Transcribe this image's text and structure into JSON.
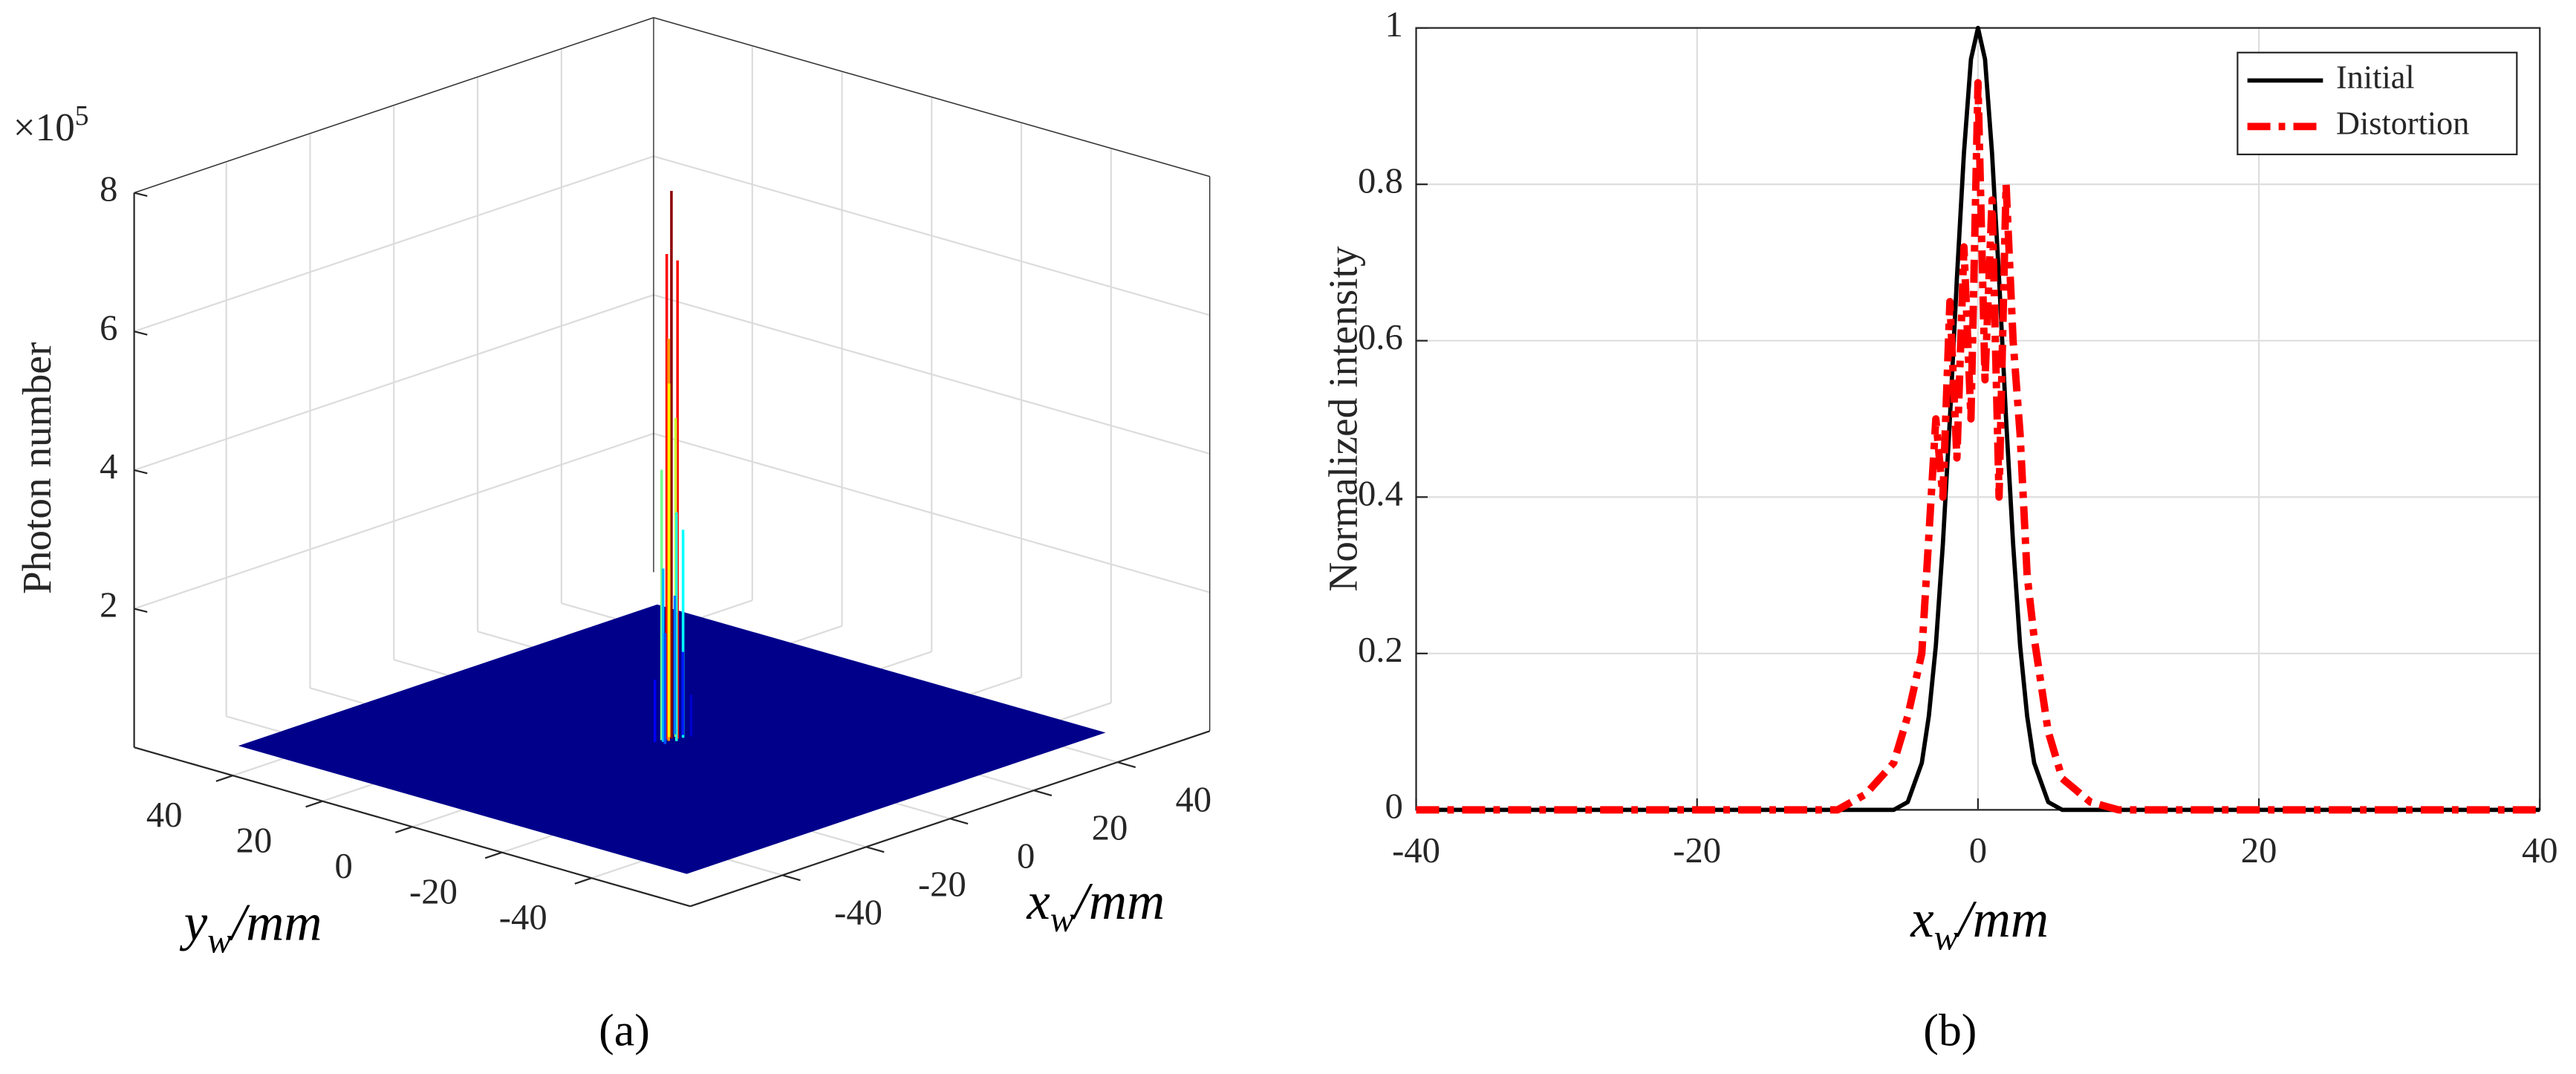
{
  "chart_data": [
    {
      "type": "surface3d",
      "caption": "(a)",
      "zlabel": "Photon number",
      "z_multiplier": {
        "base": "×10",
        "exponent": "5"
      },
      "xlabel": {
        "text": "x",
        "subscript": "w",
        "unit": "/mm"
      },
      "ylabel": {
        "text": "y",
        "subscript": "w",
        "unit": "/mm"
      },
      "xlim": [
        -62,
        62
      ],
      "ylim": [
        -62,
        62
      ],
      "zlim": [
        0,
        8
      ],
      "xticks": [
        -40,
        -20,
        0,
        20,
        40
      ],
      "yticks": [
        -40,
        -20,
        0,
        20,
        40
      ],
      "zticks": [
        2,
        4,
        6,
        8
      ],
      "surface_x": [
        -50,
        50
      ],
      "surface_y": [
        -50,
        50
      ],
      "surface_color": "#00008b",
      "grid": true,
      "x": [
        0.2,
        -0.6,
        0.8,
        -1.0,
        0.5,
        1.3,
        -1.5,
        -0.2,
        1.8,
        -2.0,
        2.2,
        -2.6,
        2.8,
        -3.0,
        3.2
      ],
      "y": [
        0.3,
        0.6,
        -0.5,
        -0.2,
        1.1,
        0.4,
        0.9,
        -1.2,
        -0.8,
        0.1,
        1.4,
        -0.9,
        0.2,
        1.0,
        -1.3
      ],
      "values": [
        7.9,
        7.0,
        6.9,
        5.8,
        5.1,
        4.6,
        3.9,
        3.3,
        3.0,
        2.5,
        2.0,
        1.6,
        1.2,
        0.9,
        0.6
      ]
    },
    {
      "type": "line",
      "caption": "(b)",
      "ylabel": "Normalized intensity",
      "xlabel": {
        "text": "x",
        "subscript": "w",
        "unit": "/mm"
      },
      "xlim": [
        -40,
        40
      ],
      "ylim": [
        0,
        1
      ],
      "xticks": [
        -40,
        -20,
        0,
        20,
        40
      ],
      "yticks": [
        0,
        0.2,
        0.4,
        0.6,
        0.8,
        1
      ],
      "grid": true,
      "legend": "upper right",
      "x": [
        -40,
        -30,
        -20,
        -10,
        -8,
        -6,
        -5,
        -4,
        -3.5,
        -3,
        -2.5,
        -2,
        -1.5,
        -1,
        -0.5,
        0,
        0.5,
        1,
        1.5,
        2,
        2.5,
        3,
        3.5,
        4,
        5,
        6,
        8,
        10,
        20,
        30,
        40
      ],
      "series": [
        {
          "name": "Initial",
          "color": "#000000",
          "style": "solid",
          "values": [
            0,
            0,
            0,
            0,
            0,
            0,
            0.01,
            0.06,
            0.12,
            0.21,
            0.34,
            0.5,
            0.68,
            0.84,
            0.96,
            1,
            0.96,
            0.84,
            0.68,
            0.5,
            0.34,
            0.21,
            0.12,
            0.06,
            0.01,
            0,
            0,
            0,
            0,
            0,
            0
          ]
        },
        {
          "name": "Distortion",
          "color": "#ff0000",
          "style": "dashdot",
          "values": [
            0,
            0,
            0,
            0,
            0.02,
            0.06,
            0.12,
            0.2,
            0.35,
            0.5,
            0.4,
            0.65,
            0.45,
            0.72,
            0.5,
            0.93,
            0.55,
            0.78,
            0.4,
            0.8,
            0.6,
            0.48,
            0.3,
            0.22,
            0.1,
            0.04,
            0.01,
            0,
            0,
            0,
            0
          ]
        }
      ]
    }
  ]
}
